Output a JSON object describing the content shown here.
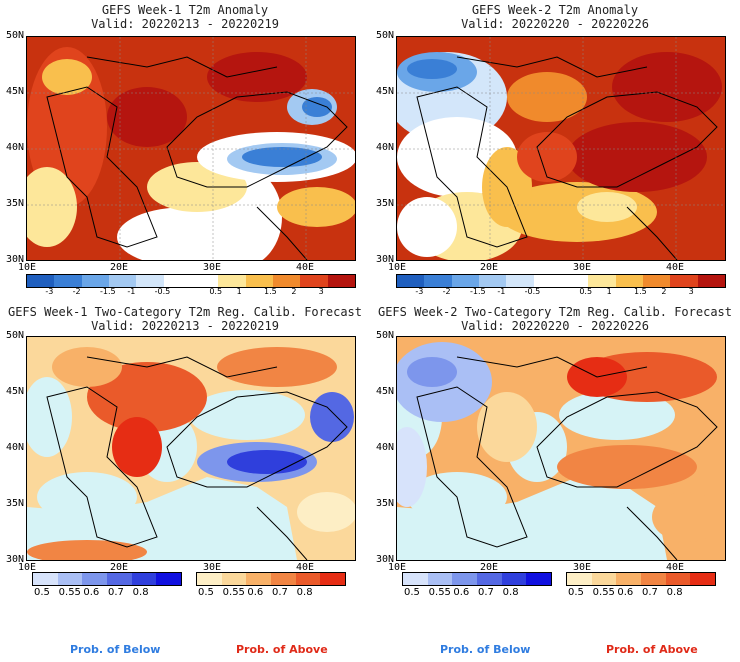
{
  "panels": {
    "p1": {
      "title": "GEFS Week-1 T2m Anomaly",
      "subtitle": "Valid: 20220213 - 20220219"
    },
    "p2": {
      "title": "GEFS Week-2 T2m Anomaly",
      "subtitle": "Valid: 20220220 - 20220226"
    },
    "p3": {
      "title": "GEFS Week-1 Two-Category T2m Reg. Calib. Forecast",
      "subtitle": "Valid: 20220213 - 20220219"
    },
    "p4": {
      "title": "GEFS Week-2 Two-Category T2m Reg. Calib. Forecast",
      "subtitle": "Valid: 20220220 - 20220226"
    }
  },
  "lat_labels": [
    "50N",
    "45N",
    "40N",
    "35N",
    "30N"
  ],
  "lon_labels": [
    "10E",
    "20E",
    "30E",
    "40E"
  ],
  "anomaly_scale": {
    "ticks": [
      "-3",
      "-2",
      "-1.5",
      "-1",
      "-0.5",
      "0.5",
      "1",
      "1.5",
      "2",
      "3"
    ],
    "colors": [
      "#1f5fbf",
      "#3a7fd6",
      "#6aa6e8",
      "#a3c9f2",
      "#d3e6fa",
      "#ffffff",
      "#ffffff",
      "#fde79a",
      "#f9bf4d",
      "#f08a2c",
      "#e0441d",
      "#b5150f"
    ]
  },
  "prob_below_scale": {
    "ticks": [
      "0.5",
      "0.55",
      "0.6",
      "0.7",
      "0.8"
    ],
    "colors": [
      "#d7e3fb",
      "#aabff5",
      "#7d96ec",
      "#5468e3",
      "#2f3fdc",
      "#1010e0"
    ]
  },
  "prob_above_scale": {
    "ticks": [
      "0.5",
      "0.55",
      "0.6",
      "0.7",
      "0.8"
    ],
    "colors": [
      "#fdeec5",
      "#fbd89b",
      "#f8b168",
      "#f18544",
      "#ea5a2a",
      "#e62d14"
    ]
  },
  "legend": {
    "below": "Prob. of Below",
    "above": "Prob. of Above",
    "below_color": "#2f7ce0",
    "above_color": "#e02a18"
  },
  "colors": {
    "sea": "#d6f3f6",
    "border": "#000000"
  }
}
